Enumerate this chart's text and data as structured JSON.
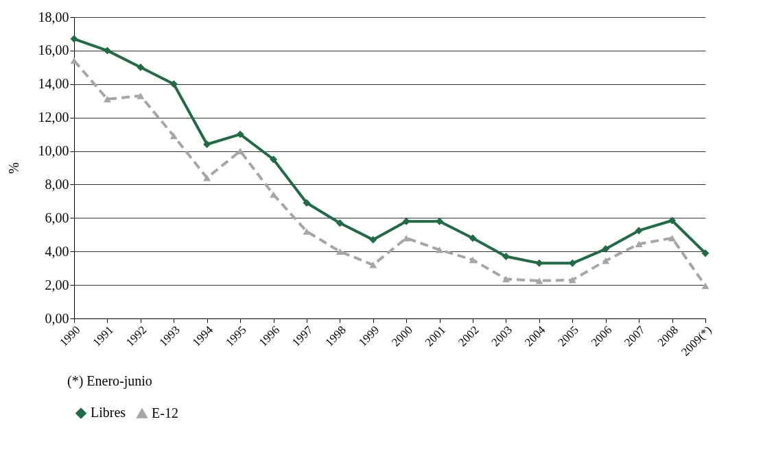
{
  "chart_data": {
    "type": "line",
    "ylabel": "%",
    "categories": [
      "1990",
      "1991",
      "1992",
      "1993",
      "1994",
      "1995",
      "1996",
      "1997",
      "1998",
      "1999",
      "2000",
      "2001",
      "2002",
      "2003",
      "2004",
      "2005",
      "2006",
      "2007",
      "2008",
      "2009(*)"
    ],
    "series": [
      {
        "name": "Libres",
        "color": "#1e6b45",
        "marker": "diamond",
        "line_style": "solid",
        "values": [
          16.7,
          16.0,
          15.0,
          14.0,
          10.4,
          11.0,
          9.5,
          6.9,
          5.7,
          4.7,
          5.8,
          5.8,
          4.8,
          3.7,
          3.3,
          3.3,
          4.15,
          5.25,
          5.85,
          3.9
        ]
      },
      {
        "name": "E-12",
        "color": "#a6a6a6",
        "marker": "triangle",
        "line_style": "dashed",
        "values": [
          15.4,
          13.1,
          13.3,
          10.9,
          8.4,
          10.0,
          7.4,
          5.2,
          4.0,
          3.2,
          4.8,
          4.1,
          3.5,
          2.35,
          2.25,
          2.3,
          3.45,
          4.45,
          4.8,
          1.95
        ]
      }
    ],
    "ylim": [
      0,
      18
    ],
    "yticks": [
      {
        "value": 0,
        "label": "0,00"
      },
      {
        "value": 2,
        "label": "2,00"
      },
      {
        "value": 4,
        "label": "4,00"
      },
      {
        "value": 6,
        "label": "6,00"
      },
      {
        "value": 8,
        "label": "8,00"
      },
      {
        "value": 10,
        "label": "10,00"
      },
      {
        "value": 12,
        "label": "12,00"
      },
      {
        "value": 14,
        "label": "14,00"
      },
      {
        "value": 16,
        "label": "16,00"
      },
      {
        "value": 18,
        "label": "18,00"
      }
    ],
    "grid": "y",
    "legend": "bottom",
    "annotations": [
      "(*) Enero-junio"
    ]
  }
}
